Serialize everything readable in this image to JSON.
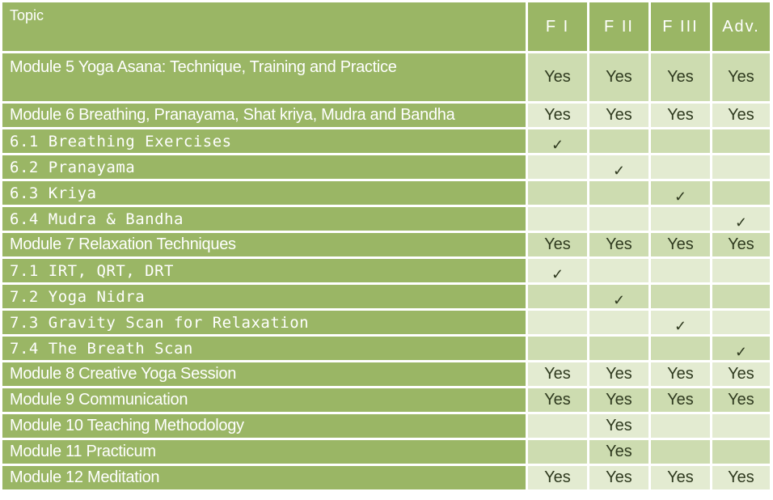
{
  "header": {
    "topic": "Topic",
    "columns": [
      "F I",
      "F II",
      "F III",
      "Adv."
    ]
  },
  "rows": [
    {
      "topic": "Module 5 Yoga Asana: Technique, Training and Practice",
      "values": [
        "Yes",
        "Yes",
        "Yes",
        "Yes"
      ]
    },
    {
      "topic": "Module 6 Breathing, Pranayama, Shat kriya, Mudra and Bandha",
      "values": [
        "Yes",
        "Yes",
        "Yes",
        "Yes"
      ]
    },
    {
      "topic": "6.1 Breathing Exercises",
      "values": [
        "✓",
        "",
        "",
        ""
      ]
    },
    {
      "topic": "6.2 Pranayama",
      "values": [
        "",
        "✓",
        "",
        ""
      ]
    },
    {
      "topic": "6.3 Kriya",
      "values": [
        "",
        "",
        "✓",
        ""
      ]
    },
    {
      "topic": "6.4 Mudra & Bandha",
      "values": [
        "",
        "",
        "",
        "✓"
      ]
    },
    {
      "topic": "Module 7 Relaxation Techniques",
      "values": [
        "Yes",
        "Yes",
        "Yes",
        "Yes"
      ]
    },
    {
      "topic": "7.1 IRT, QRT, DRT",
      "values": [
        "✓",
        "",
        "",
        ""
      ]
    },
    {
      "topic": "7.2 Yoga Nidra",
      "values": [
        "",
        "✓",
        "",
        ""
      ]
    },
    {
      "topic": "7.3 Gravity Scan for Relaxation",
      "values": [
        "",
        "",
        "✓",
        ""
      ]
    },
    {
      "topic": "7.4 The Breath Scan",
      "values": [
        "",
        "",
        "",
        "✓"
      ]
    },
    {
      "topic": "Module 8 Creative Yoga Session",
      "values": [
        "Yes",
        "Yes",
        "Yes",
        "Yes"
      ]
    },
    {
      "topic": "Module 9 Communication",
      "values": [
        "Yes",
        "Yes",
        "Yes",
        "Yes"
      ]
    },
    {
      "topic": "Module 10 Teaching Methodology",
      "values": [
        "",
        "Yes",
        "",
        ""
      ]
    },
    {
      "topic": "Module 11 Practicum",
      "values": [
        "",
        "Yes",
        "",
        ""
      ]
    },
    {
      "topic": "Module 12 Meditation",
      "values": [
        "Yes",
        "Yes",
        "Yes",
        "Yes"
      ]
    }
  ],
  "colors": {
    "topic_bg": "#9ab665",
    "row_light": "#e3ebd1",
    "row_dark": "#cddcb0",
    "value_text": "#2f3a1f"
  }
}
